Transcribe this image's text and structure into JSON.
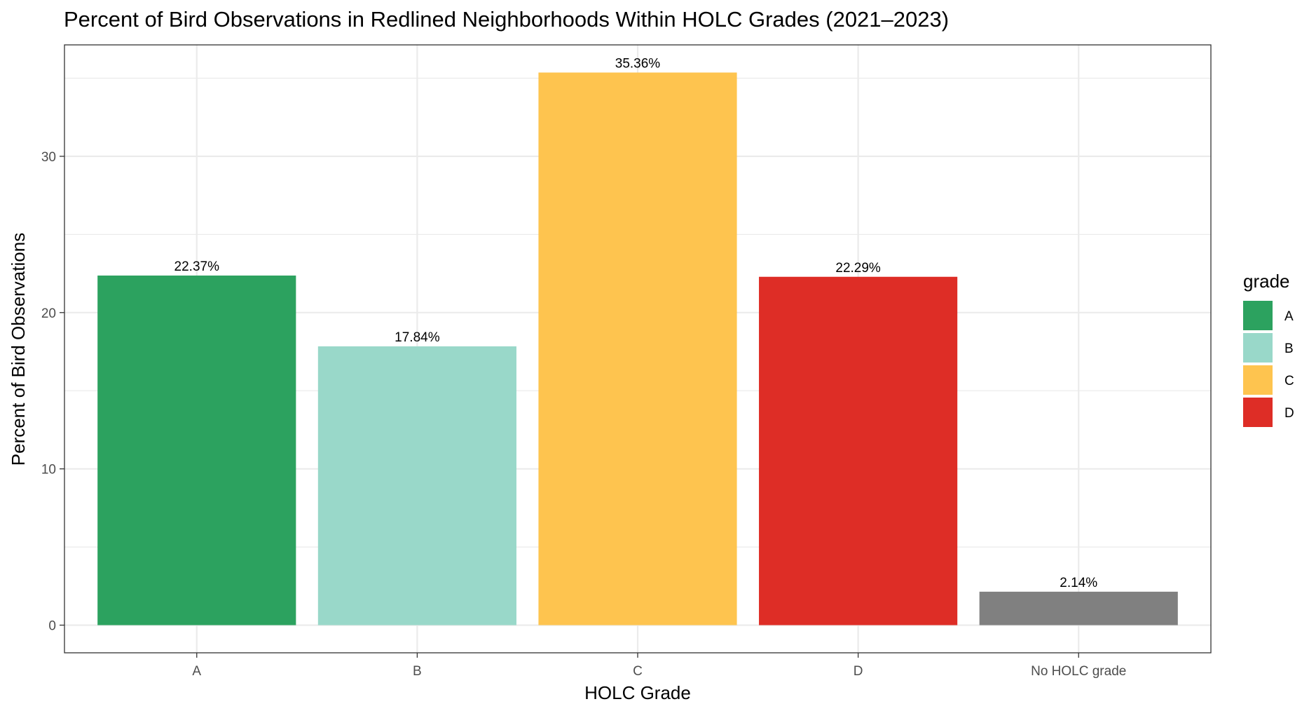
{
  "chart_data": {
    "type": "bar",
    "title": "Percent of Bird Observations in Redlined Neighborhoods Within HOLC Grades (2021–2023)",
    "xlabel": "HOLC Grade",
    "ylabel": "Percent of Bird Observations",
    "categories": [
      "A",
      "B",
      "C",
      "D",
      "No HOLC grade"
    ],
    "values": [
      22.37,
      17.84,
      35.36,
      22.29,
      2.14
    ],
    "data_labels": [
      "22.37%",
      "17.84%",
      "35.36%",
      "22.29%",
      "2.14%"
    ],
    "bar_colors": [
      "#2ca25f",
      "#99d8c9",
      "#fec44f",
      "#de2d26",
      "#808080"
    ],
    "ylim": [
      -1.77,
      37.13
    ],
    "yticks": [
      0,
      10,
      20,
      30
    ],
    "grid": true,
    "legend": {
      "title": "grade",
      "position": "right",
      "entries": [
        {
          "label": "A",
          "color": "#2ca25f"
        },
        {
          "label": "B",
          "color": "#99d8c9"
        },
        {
          "label": "C",
          "color": "#fec44f"
        },
        {
          "label": "D",
          "color": "#de2d26"
        }
      ]
    }
  }
}
